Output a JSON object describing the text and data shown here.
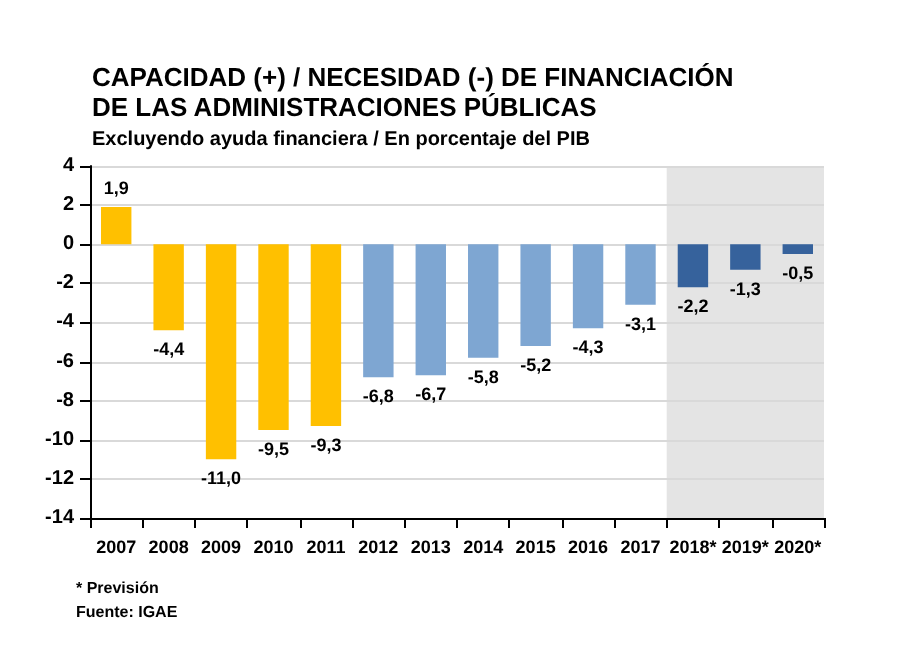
{
  "chart_data": {
    "type": "bar",
    "title": "CAPACIDAD (+) / NECESIDAD (-) DE FINANCIACIÓN DE LAS ADMINISTRACIONES PÚBLICAS",
    "subtitle": "Excluyendo ayuda financiera / En porcentaje del PIB",
    "categories": [
      "2007",
      "2008",
      "2009",
      "2010",
      "2011",
      "2012",
      "2013",
      "2014",
      "2015",
      "2016",
      "2017",
      "2018*",
      "2019*",
      "2020*"
    ],
    "values": [
      1.9,
      -4.4,
      -11.0,
      -9.5,
      -9.3,
      -6.8,
      -6.7,
      -5.8,
      -5.2,
      -4.3,
      -3.1,
      -2.2,
      -1.3,
      -0.5
    ],
    "value_labels": [
      "1,9",
      "-4,4",
      "-11,0",
      "-9,5",
      "-9,3",
      "-6,8",
      "-6,7",
      "-5,8",
      "-5,2",
      "-4,3",
      "-3,1",
      "-2,2",
      "-1,3",
      "-0,5"
    ],
    "colors": [
      "#ffc000",
      "#ffc000",
      "#ffc000",
      "#ffc000",
      "#ffc000",
      "#7ea6d2",
      "#7ea6d2",
      "#7ea6d2",
      "#7ea6d2",
      "#7ea6d2",
      "#7ea6d2",
      "#36629c",
      "#36629c",
      "#36629c"
    ],
    "ylim": [
      -14,
      4
    ],
    "yticks": [
      -14,
      -12,
      -10,
      -8,
      -6,
      -4,
      -2,
      0,
      2,
      4
    ],
    "grid": "y",
    "bands": [
      {
        "axis": "x",
        "from": "2018*",
        "to": "2020*",
        "color": "#e4e4e4"
      }
    ],
    "annotations": [
      "* Previsión",
      "Fuente: IGAE"
    ]
  }
}
